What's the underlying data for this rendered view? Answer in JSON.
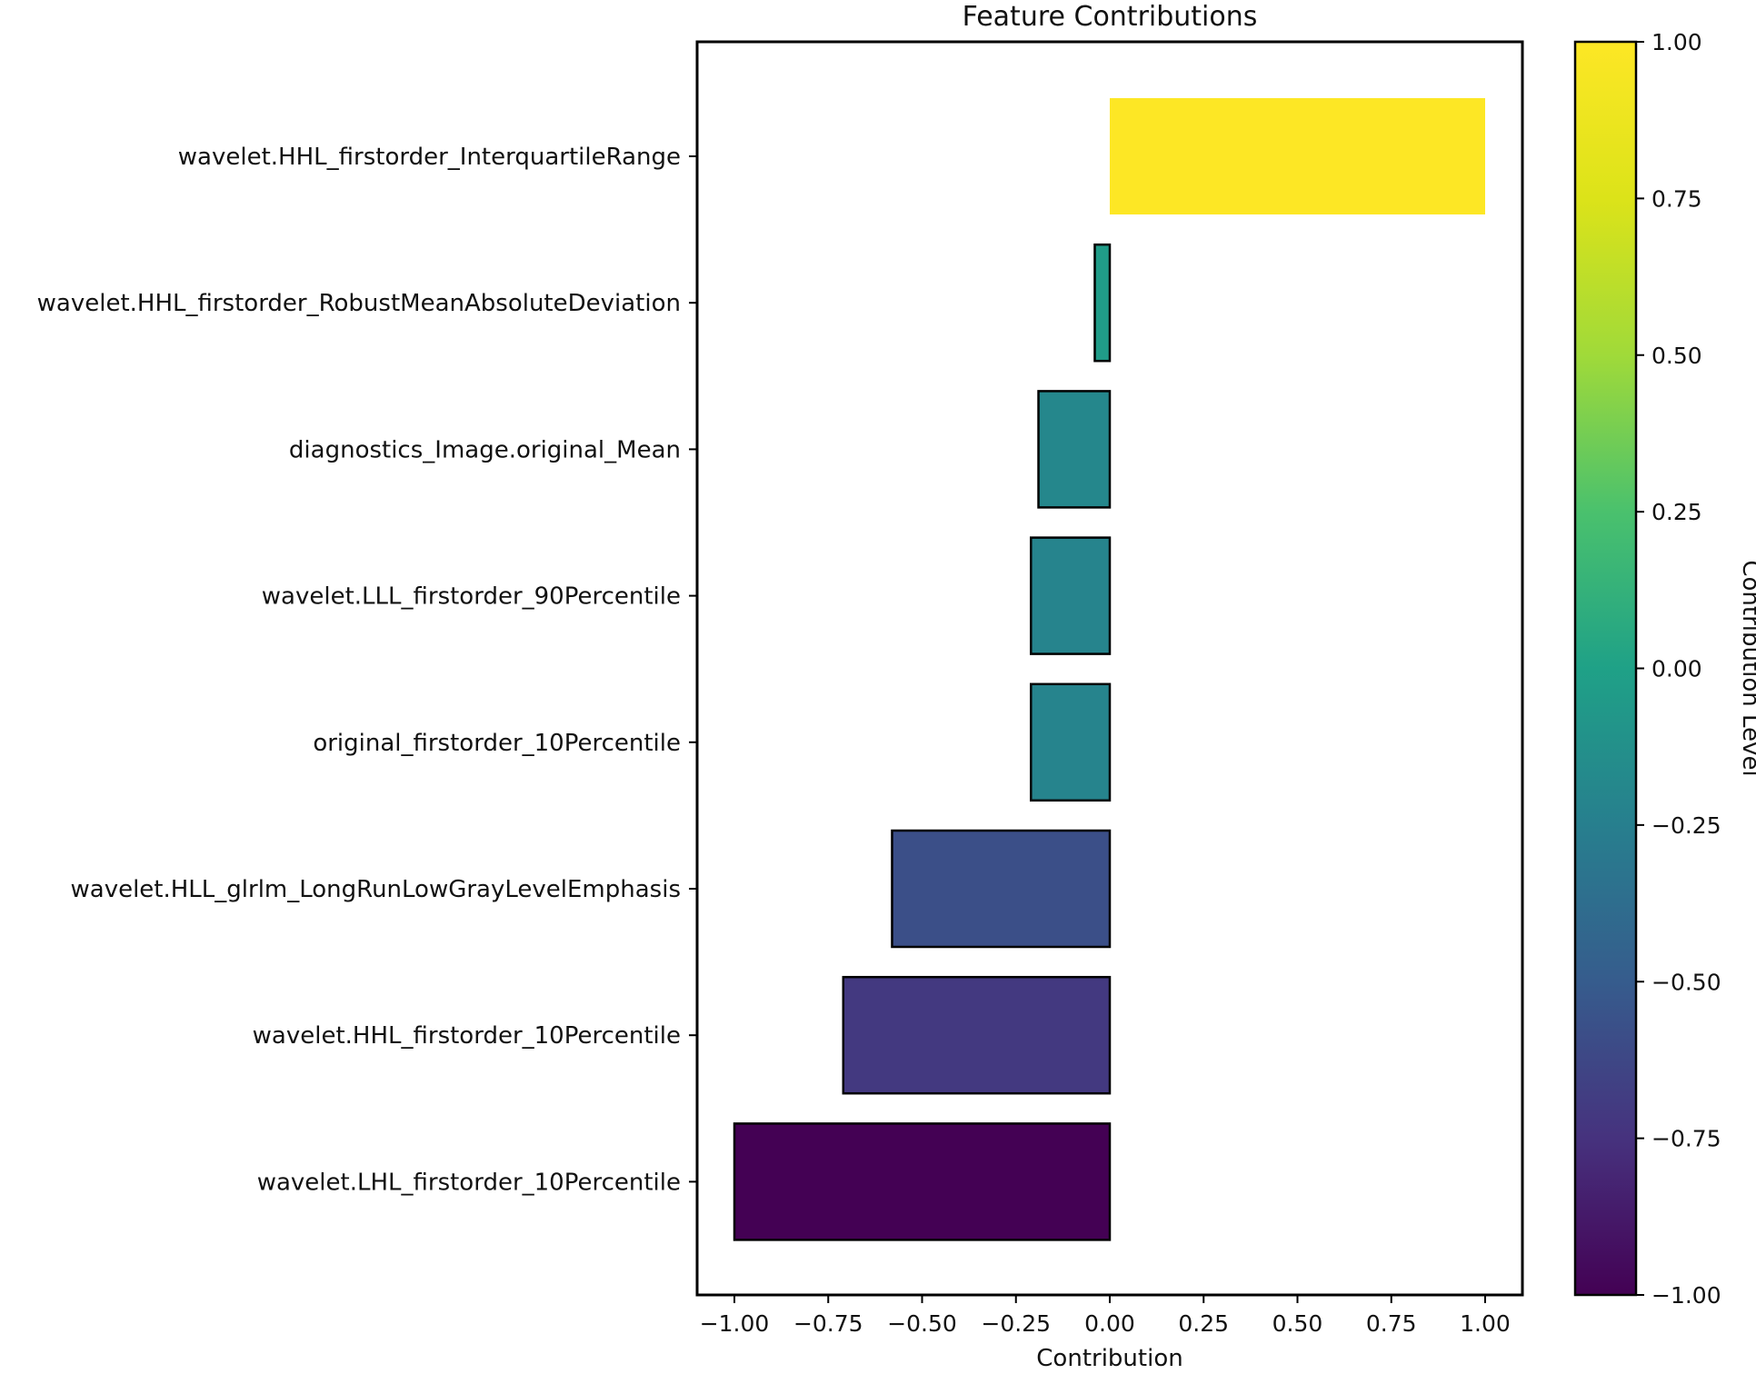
{
  "chart_data": {
    "type": "bar",
    "orientation": "horizontal",
    "title": "Feature Contributions",
    "xlabel": "Contribution",
    "ylabel": "",
    "xlim": [
      -1.0,
      1.0
    ],
    "x_ticks": [
      "−1.00",
      "−0.75",
      "−0.50",
      "−0.25",
      "0.00",
      "0.25",
      "0.50",
      "0.75",
      "1.00"
    ],
    "x_tick_values": [
      -1.0,
      -0.75,
      -0.5,
      -0.25,
      0.0,
      0.25,
      0.5,
      0.75,
      1.0
    ],
    "categories": [
      "wavelet.HHL_firstorder_InterquartileRange",
      "wavelet.HHL_firstorder_RobustMeanAbsoluteDeviation",
      "diagnostics_Image.original_Mean",
      "wavelet.LLL_firstorder_90Percentile",
      "original_firstorder_10Percentile",
      "wavelet.HLL_glrlm_LongRunLowGrayLevelEmphasis",
      "wavelet.HHL_firstorder_10Percentile",
      "wavelet.LHL_firstorder_10Percentile"
    ],
    "values": [
      1.0,
      -0.04,
      -0.19,
      -0.21,
      -0.21,
      -0.58,
      -0.71,
      -1.0
    ],
    "colormap": "viridis",
    "colorbar": {
      "label": "Contribution Level",
      "range": [
        -1.0,
        1.0
      ],
      "ticks": [
        "1.00",
        "0.75",
        "0.50",
        "0.25",
        "0.00",
        "−0.25",
        "−0.50",
        "−0.75",
        "−1.00"
      ],
      "tick_values": [
        1.0,
        0.75,
        0.5,
        0.25,
        0.0,
        -0.25,
        -0.5,
        -0.75,
        -1.0
      ]
    },
    "grid": false,
    "legend": "none"
  }
}
